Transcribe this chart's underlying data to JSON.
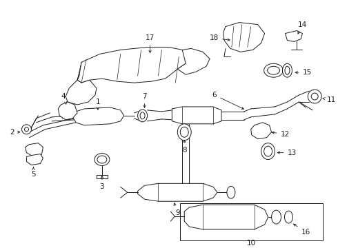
{
  "bg_color": "#ffffff",
  "line_color": "#1a1a1a",
  "label_color": "#000000",
  "fig_width": 4.9,
  "fig_height": 3.6,
  "dpi": 100
}
